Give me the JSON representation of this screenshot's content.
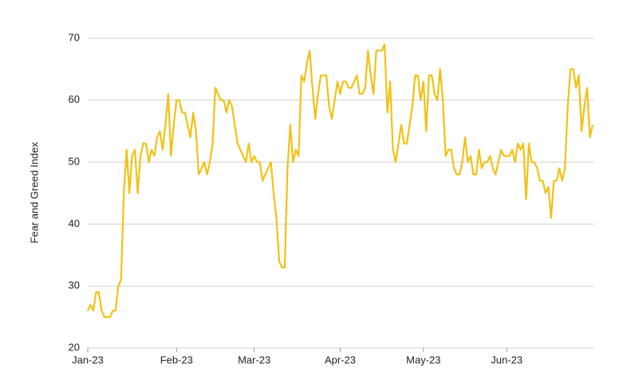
{
  "chart_data": {
    "type": "line",
    "ylabel": "Fear and Greed Index",
    "categories": [
      "Jan-23",
      null,
      null,
      null,
      null,
      null,
      null,
      null,
      null,
      null,
      null,
      null,
      null,
      null,
      null,
      null,
      null,
      null,
      null,
      null,
      null,
      null,
      null,
      null,
      null,
      null,
      null,
      null,
      null,
      null,
      null,
      null,
      "Feb-23",
      null,
      null,
      null,
      null,
      null,
      null,
      null,
      null,
      null,
      null,
      null,
      null,
      null,
      null,
      null,
      null,
      null,
      null,
      null,
      null,
      null,
      null,
      null,
      null,
      null,
      null,
      null,
      "Mar-23",
      null,
      null,
      null,
      null,
      null,
      null,
      null,
      null,
      null,
      null,
      null,
      null,
      null,
      null,
      null,
      null,
      null,
      null,
      null,
      null,
      null,
      null,
      null,
      null,
      null,
      null,
      null,
      null,
      null,
      null,
      "Apr-23",
      null,
      null,
      null,
      null,
      null,
      null,
      null,
      null,
      null,
      null,
      null,
      null,
      null,
      null,
      null,
      null,
      null,
      null,
      null,
      null,
      null,
      null,
      null,
      null,
      null,
      null,
      null,
      null,
      null,
      "May-23",
      null,
      null,
      null,
      null,
      null,
      null,
      null,
      null,
      null,
      null,
      null,
      null,
      null,
      null,
      null,
      null,
      null,
      null,
      null,
      null,
      null,
      null,
      null,
      null,
      null,
      null,
      null,
      null,
      null,
      "Jun-23",
      null,
      null,
      null,
      null,
      null,
      null,
      null,
      null,
      null,
      null,
      null,
      null,
      null,
      null,
      null,
      null,
      null,
      null,
      null,
      null,
      null,
      null,
      null,
      null,
      null,
      null,
      null,
      null,
      null,
      null,
      null
    ],
    "series": [
      {
        "name": "Fear and Greed Index",
        "color": "#f2c114",
        "values": [
          26,
          27,
          26,
          29,
          29,
          26,
          25,
          25,
          25,
          26,
          26,
          30,
          31,
          45,
          52,
          45,
          51,
          52,
          45,
          51,
          53,
          53,
          50,
          52,
          51,
          54,
          55,
          52,
          56,
          61,
          51,
          56,
          60,
          60,
          58,
          58,
          56,
          54,
          58,
          55,
          48,
          49,
          50,
          48,
          50,
          53,
          62,
          61,
          60,
          60,
          58,
          60,
          59,
          56,
          53,
          52,
          51,
          50,
          53,
          50,
          51,
          50,
          50,
          47,
          48,
          49,
          50,
          45,
          41,
          34,
          33,
          33,
          49,
          56,
          50,
          52,
          51,
          64,
          63,
          66,
          68,
          62,
          57,
          61,
          64,
          64,
          64,
          59,
          57,
          60,
          63,
          61,
          63,
          63,
          62,
          62,
          63,
          64,
          61,
          61,
          62,
          68,
          64,
          61,
          68,
          68,
          68,
          69,
          58,
          63,
          52,
          50,
          53,
          56,
          53,
          53,
          56,
          59,
          64,
          64,
          60,
          63,
          55,
          64,
          64,
          61,
          60,
          65,
          60,
          51,
          52,
          52,
          49,
          48,
          48,
          50,
          54,
          50,
          51,
          48,
          48,
          52,
          49,
          50,
          50,
          51,
          49,
          48,
          50,
          52,
          51,
          51,
          51,
          52,
          50,
          53,
          52,
          53,
          44,
          53,
          50,
          50,
          49,
          47,
          47,
          45,
          46,
          41,
          47,
          47,
          49,
          47,
          49,
          59,
          65,
          65,
          62,
          64,
          55,
          59,
          62,
          54,
          56
        ]
      }
    ],
    "ylim": [
      20,
      70
    ],
    "yticks": [
      20,
      30,
      40,
      50,
      60,
      70
    ],
    "grid": true
  }
}
